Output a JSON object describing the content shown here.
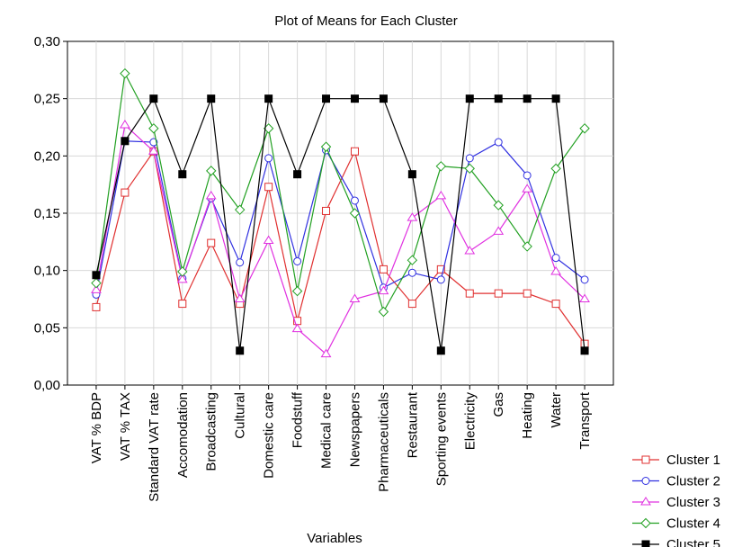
{
  "chart_data": {
    "type": "line",
    "title": "Plot of Means for Each Cluster",
    "xlabel": "Variables",
    "ylabel": "",
    "ylim": [
      0,
      0.3
    ],
    "yticks": [
      "0,00",
      "0,05",
      "0,10",
      "0,15",
      "0,20",
      "0,25",
      "0,30"
    ],
    "grid": true,
    "legend_position": "bottom-right",
    "categories": [
      "VAT % BDP",
      "VAT % TAX",
      "Standard VAT rate",
      "Accomodation",
      "Broadcasting",
      "Cultural",
      "Domestic care",
      "Foodstuff",
      "Medical care",
      "Newspapers",
      "Pharmaceuticals",
      "Restaurant",
      "Sporting events",
      "Electricity",
      "Gas",
      "Heating",
      "Water",
      "Transport"
    ],
    "series": [
      {
        "name": "Cluster 1",
        "color": "#e03030",
        "marker": "square-open",
        "values": [
          0.068,
          0.168,
          0.204,
          0.071,
          0.124,
          0.071,
          0.173,
          0.056,
          0.152,
          0.204,
          0.101,
          0.071,
          0.101,
          0.08,
          0.08,
          0.08,
          0.071,
          0.036
        ]
      },
      {
        "name": "Cluster 2",
        "color": "#3030e0",
        "marker": "circle-open",
        "values": [
          0.079,
          0.213,
          0.212,
          0.093,
          0.163,
          0.107,
          0.198,
          0.108,
          0.205,
          0.161,
          0.085,
          0.098,
          0.092,
          0.198,
          0.212,
          0.183,
          0.111,
          0.092
        ]
      },
      {
        "name": "Cluster 3",
        "color": "#e030e0",
        "marker": "triangle-open",
        "values": [
          0.083,
          0.227,
          0.204,
          0.092,
          0.165,
          0.075,
          0.126,
          0.049,
          0.027,
          0.075,
          0.082,
          0.146,
          0.165,
          0.117,
          0.134,
          0.171,
          0.099,
          0.075
        ]
      },
      {
        "name": "Cluster 4",
        "color": "#22a022",
        "marker": "diamond-open",
        "values": [
          0.089,
          0.272,
          0.224,
          0.099,
          0.187,
          0.153,
          0.224,
          0.082,
          0.208,
          0.15,
          0.064,
          0.109,
          0.191,
          0.189,
          0.157,
          0.121,
          0.189,
          0.224
        ]
      },
      {
        "name": "Cluster 5",
        "color": "#000000",
        "marker": "square-filled",
        "values": [
          0.096,
          0.213,
          0.25,
          0.184,
          0.25,
          0.03,
          0.25,
          0.184,
          0.25,
          0.25,
          0.25,
          0.184,
          0.03,
          0.25,
          0.25,
          0.25,
          0.25,
          0.03
        ]
      }
    ]
  }
}
